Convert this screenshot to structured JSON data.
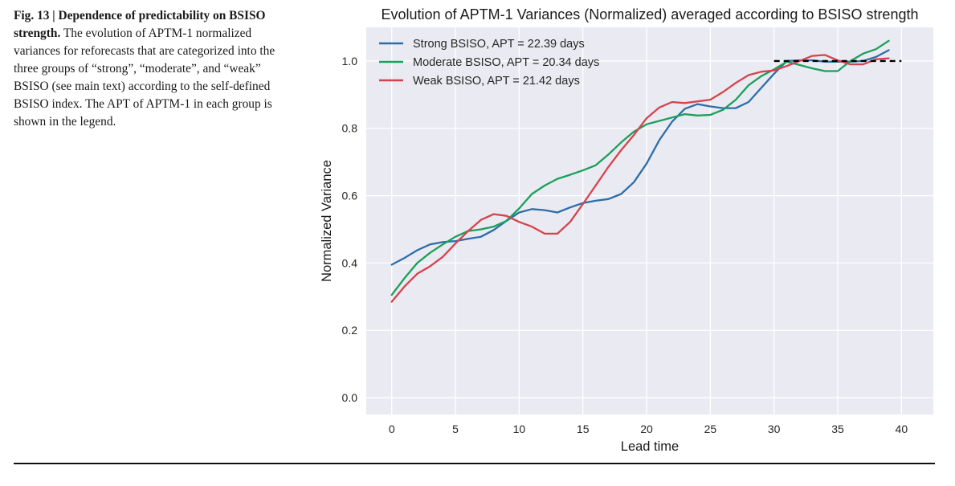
{
  "caption": {
    "fig_label": "Fig. 13 | Dependence of predictability on BSISO strength.",
    "text": " The evolution of APTM-1 normalized variances for reforecasts that are categorized into the three groups of “strong”, “moderate”, and “weak” BSISO (see main text) according to the self-defined BSISO index. The APT of APTM-1 in each group is shown in the legend."
  },
  "colors": {
    "plot_bg": "#eaeaf2",
    "grid": "#ffffff",
    "strong": "#2c6ea8",
    "moderate": "#1aa05a",
    "weak": "#d6434c",
    "reference": "#000000"
  },
  "chart_data": {
    "type": "line",
    "title": "Evolution of APTM-1 Variances (Normalized) averaged according to BSISO strength",
    "xlabel": "Lead time",
    "ylabel": "Normalized Variance",
    "xlim": [
      -2,
      42.5
    ],
    "ylim": [
      -0.05,
      1.1
    ],
    "xticks": [
      0,
      5,
      10,
      15,
      20,
      25,
      30,
      35,
      40
    ],
    "yticks": [
      0.0,
      0.2,
      0.4,
      0.6,
      0.8,
      1.0
    ],
    "grid": true,
    "legend_position": "top-left",
    "x": [
      0,
      1,
      2,
      3,
      4,
      5,
      6,
      7,
      8,
      9,
      10,
      11,
      12,
      13,
      14,
      15,
      16,
      17,
      18,
      19,
      20,
      21,
      22,
      23,
      24,
      25,
      26,
      27,
      28,
      29,
      30,
      31,
      32,
      33,
      34,
      35,
      36,
      37,
      38,
      39
    ],
    "series": [
      {
        "key": "strong",
        "name": "Strong BSISO, APT = 22.39 days",
        "values": [
          0.395,
          0.415,
          0.438,
          0.455,
          0.462,
          0.465,
          0.472,
          0.478,
          0.498,
          0.525,
          0.55,
          0.56,
          0.557,
          0.55,
          0.565,
          0.578,
          0.585,
          0.59,
          0.605,
          0.64,
          0.695,
          0.765,
          0.82,
          0.858,
          0.872,
          0.865,
          0.86,
          0.86,
          0.878,
          0.92,
          0.962,
          1.0,
          1.002,
          1.002,
          0.998,
          0.998,
          0.998,
          1.0,
          1.012,
          1.032
        ]
      },
      {
        "key": "moderate",
        "name": "Moderate BSISO, APT = 20.34 days",
        "values": [
          0.305,
          0.355,
          0.4,
          0.43,
          0.455,
          0.478,
          0.495,
          0.5,
          0.508,
          0.525,
          0.562,
          0.605,
          0.63,
          0.65,
          0.662,
          0.675,
          0.69,
          0.722,
          0.758,
          0.79,
          0.812,
          0.822,
          0.832,
          0.842,
          0.838,
          0.84,
          0.855,
          0.885,
          0.928,
          0.955,
          0.975,
          0.998,
          0.988,
          0.978,
          0.97,
          0.97,
          1.0,
          1.022,
          1.035,
          1.06
        ]
      },
      {
        "key": "weak",
        "name": "Weak BSISO, APT = 21.42 days",
        "values": [
          0.285,
          0.33,
          0.368,
          0.39,
          0.418,
          0.458,
          0.495,
          0.528,
          0.545,
          0.54,
          0.522,
          0.508,
          0.487,
          0.487,
          0.522,
          0.575,
          0.63,
          0.685,
          0.735,
          0.78,
          0.83,
          0.862,
          0.878,
          0.875,
          0.88,
          0.885,
          0.908,
          0.935,
          0.958,
          0.968,
          0.972,
          0.985,
          1.0,
          1.015,
          1.018,
          1.002,
          0.99,
          0.99,
          1.005,
          1.008
        ]
      },
      {
        "key": "reference",
        "style": "dashed",
        "x": [
          30,
          40
        ],
        "values": [
          1.0,
          1.0
        ]
      }
    ]
  }
}
